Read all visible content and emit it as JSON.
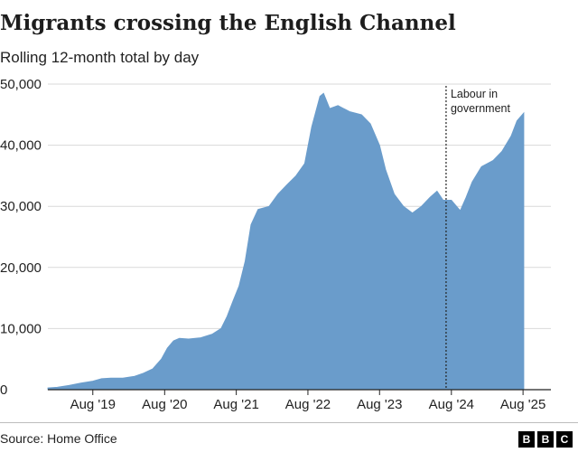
{
  "header": {
    "title": "Migrants crossing the English Channel",
    "subtitle": "Rolling 12-month total by day"
  },
  "footer": {
    "source": "Source: Home Office",
    "logo_letters": [
      "B",
      "B",
      "C"
    ]
  },
  "colors": {
    "area": "#6a9ccb",
    "axis": "#222222",
    "grid": "#d9d9d9"
  },
  "chart_data": {
    "type": "area",
    "title": "Migrants crossing the English Channel",
    "subtitle": "Rolling 12-month total by day",
    "xlabel": "",
    "ylabel": "",
    "ylim": [
      0,
      50000
    ],
    "yticks": [
      0,
      10000,
      20000,
      30000,
      40000,
      50000
    ],
    "ytick_labels": [
      "0",
      "10,000",
      "20,000",
      "30,000",
      "40,000",
      "50,000"
    ],
    "xlim": [
      "2018-12-15",
      "2025-08-05"
    ],
    "xticks": [
      "2019-08-01",
      "2020-08-01",
      "2021-08-01",
      "2022-08-01",
      "2023-08-01",
      "2024-08-01",
      "2025-08-01"
    ],
    "xtick_labels": [
      "Aug '19",
      "Aug '20",
      "Aug '21",
      "Aug '22",
      "Aug '23",
      "Aug '24",
      "Aug '25"
    ],
    "grid": true,
    "annotations": [
      {
        "date": "2024-07-05",
        "text_lines": [
          "Labour in",
          "government"
        ],
        "style": "dotted-vertical-line"
      }
    ],
    "series": [
      {
        "name": "",
        "points": [
          [
            "2018-12-15",
            300
          ],
          [
            "2019-02-01",
            400
          ],
          [
            "2019-04-01",
            700
          ],
          [
            "2019-06-01",
            1100
          ],
          [
            "2019-08-01",
            1400
          ],
          [
            "2019-09-15",
            1800
          ],
          [
            "2019-11-01",
            1900
          ],
          [
            "2020-01-01",
            1900
          ],
          [
            "2020-03-01",
            2200
          ],
          [
            "2020-04-15",
            2700
          ],
          [
            "2020-06-01",
            3400
          ],
          [
            "2020-07-15",
            5000
          ],
          [
            "2020-08-15",
            6800
          ],
          [
            "2020-09-15",
            8000
          ],
          [
            "2020-10-15",
            8400
          ],
          [
            "2020-12-01",
            8300
          ],
          [
            "2021-02-01",
            8500
          ],
          [
            "2021-04-01",
            9100
          ],
          [
            "2021-05-15",
            10000
          ],
          [
            "2021-06-15",
            12000
          ],
          [
            "2021-07-15",
            14500
          ],
          [
            "2021-08-15",
            17000
          ],
          [
            "2021-09-15",
            21000
          ],
          [
            "2021-10-15",
            27000
          ],
          [
            "2021-11-20",
            29500
          ],
          [
            "2022-01-15",
            30000
          ],
          [
            "2022-03-01",
            32000
          ],
          [
            "2022-04-15",
            33500
          ],
          [
            "2022-06-01",
            35000
          ],
          [
            "2022-07-15",
            37000
          ],
          [
            "2022-08-20",
            43000
          ],
          [
            "2022-10-01",
            48000
          ],
          [
            "2022-10-20",
            48500
          ],
          [
            "2022-11-20",
            46000
          ],
          [
            "2023-01-01",
            46500
          ],
          [
            "2023-03-01",
            45500
          ],
          [
            "2023-05-01",
            45000
          ],
          [
            "2023-06-15",
            43500
          ],
          [
            "2023-08-01",
            40000
          ],
          [
            "2023-09-01",
            36000
          ],
          [
            "2023-10-15",
            32000
          ],
          [
            "2023-12-01",
            30000
          ],
          [
            "2024-01-15",
            28900
          ],
          [
            "2024-03-01",
            30000
          ],
          [
            "2024-04-15",
            31500
          ],
          [
            "2024-05-20",
            32500
          ],
          [
            "2024-06-20",
            31000
          ],
          [
            "2024-08-01",
            31000
          ],
          [
            "2024-09-15",
            29300
          ],
          [
            "2024-10-15",
            31500
          ],
          [
            "2024-11-15",
            34000
          ],
          [
            "2025-01-01",
            36500
          ],
          [
            "2025-03-01",
            37500
          ],
          [
            "2025-04-15",
            39000
          ],
          [
            "2025-06-01",
            41500
          ],
          [
            "2025-07-01",
            44000
          ],
          [
            "2025-08-05",
            45300
          ]
        ]
      }
    ]
  }
}
